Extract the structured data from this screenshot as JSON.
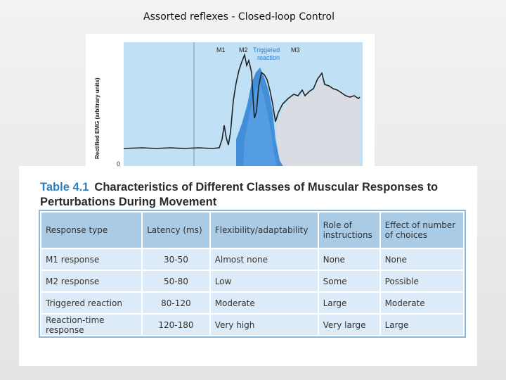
{
  "slide": {
    "title": "Assorted reflexes - Closed-loop Control"
  },
  "figure": {
    "ylabel": "Rectified EMG (arbitrary units)",
    "zero_label": "0",
    "labels": {
      "m1": "M1",
      "m2": "M2",
      "m3": "M3",
      "triggered_line1": "Triggered",
      "triggered_line2": "reaction"
    },
    "colors": {
      "background": "#bfe0f5",
      "trace": "#222222",
      "triggered": "#2b7fd4",
      "m3_fill": "#d9dde3"
    }
  },
  "table": {
    "number": "Table 4.1",
    "title_line1": "Characteristics of Different Classes of Muscular Responses to",
    "title_line2": "Perturbations During Movement",
    "headers": [
      "Response type",
      "Latency (ms)",
      "Flexibility/adaptability",
      "Role of instructions",
      "Effect of number of choices"
    ],
    "rows": [
      [
        "M1 response",
        "30-50",
        "Almost none",
        "None",
        "None"
      ],
      [
        "M2 response",
        "50-80",
        "Low",
        "Some",
        "Possible"
      ],
      [
        "Triggered reaction",
        "80-120",
        "Moderate",
        "Large",
        "Moderate"
      ],
      [
        "Reaction-time response",
        "120-180",
        "Very high",
        "Very large",
        "Large"
      ]
    ],
    "colors": {
      "header_bg": "#a9cbe6",
      "row_bg": "#dcebf7",
      "title_number": "#2f7fc0"
    }
  }
}
